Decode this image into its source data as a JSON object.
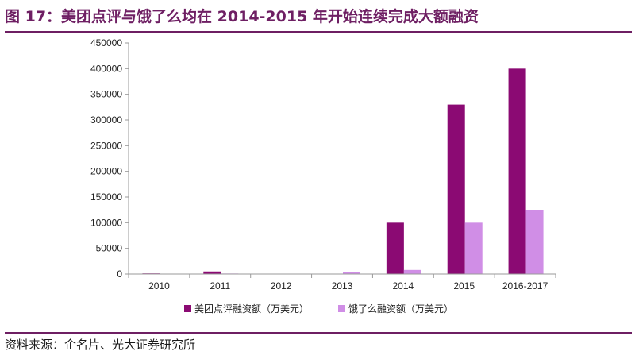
{
  "header": {
    "title": "图 17：美团点评与饿了么均在 2014-2015 年开始连续完成大额融资"
  },
  "footer": {
    "source": "资料来源：企名片、光大证券研究所"
  },
  "colors": {
    "brand": "#6e1f63",
    "series_meituan": "#8b0a73",
    "series_eleme": "#d08ee6",
    "axis": "#9a9a9a"
  },
  "chart_data": {
    "type": "bar",
    "title": "",
    "xlabel": "",
    "ylabel": "",
    "categories": [
      "2010",
      "2011",
      "2012",
      "2013",
      "2014",
      "2015",
      "2016-2017"
    ],
    "series": [
      {
        "name": "美团点评融资额（万美元）",
        "values": [
          1200,
          5000,
          0,
          0,
          100000,
          330000,
          400000
        ]
      },
      {
        "name": "饿了么融资额（万美元）",
        "values": [
          0,
          1000,
          0,
          4000,
          8000,
          100000,
          125000
        ]
      }
    ],
    "ylim": [
      0,
      450000
    ],
    "yticks": [
      0,
      50000,
      100000,
      150000,
      200000,
      250000,
      300000,
      350000,
      400000,
      450000
    ],
    "grid": false,
    "legend_position": "bottom"
  }
}
